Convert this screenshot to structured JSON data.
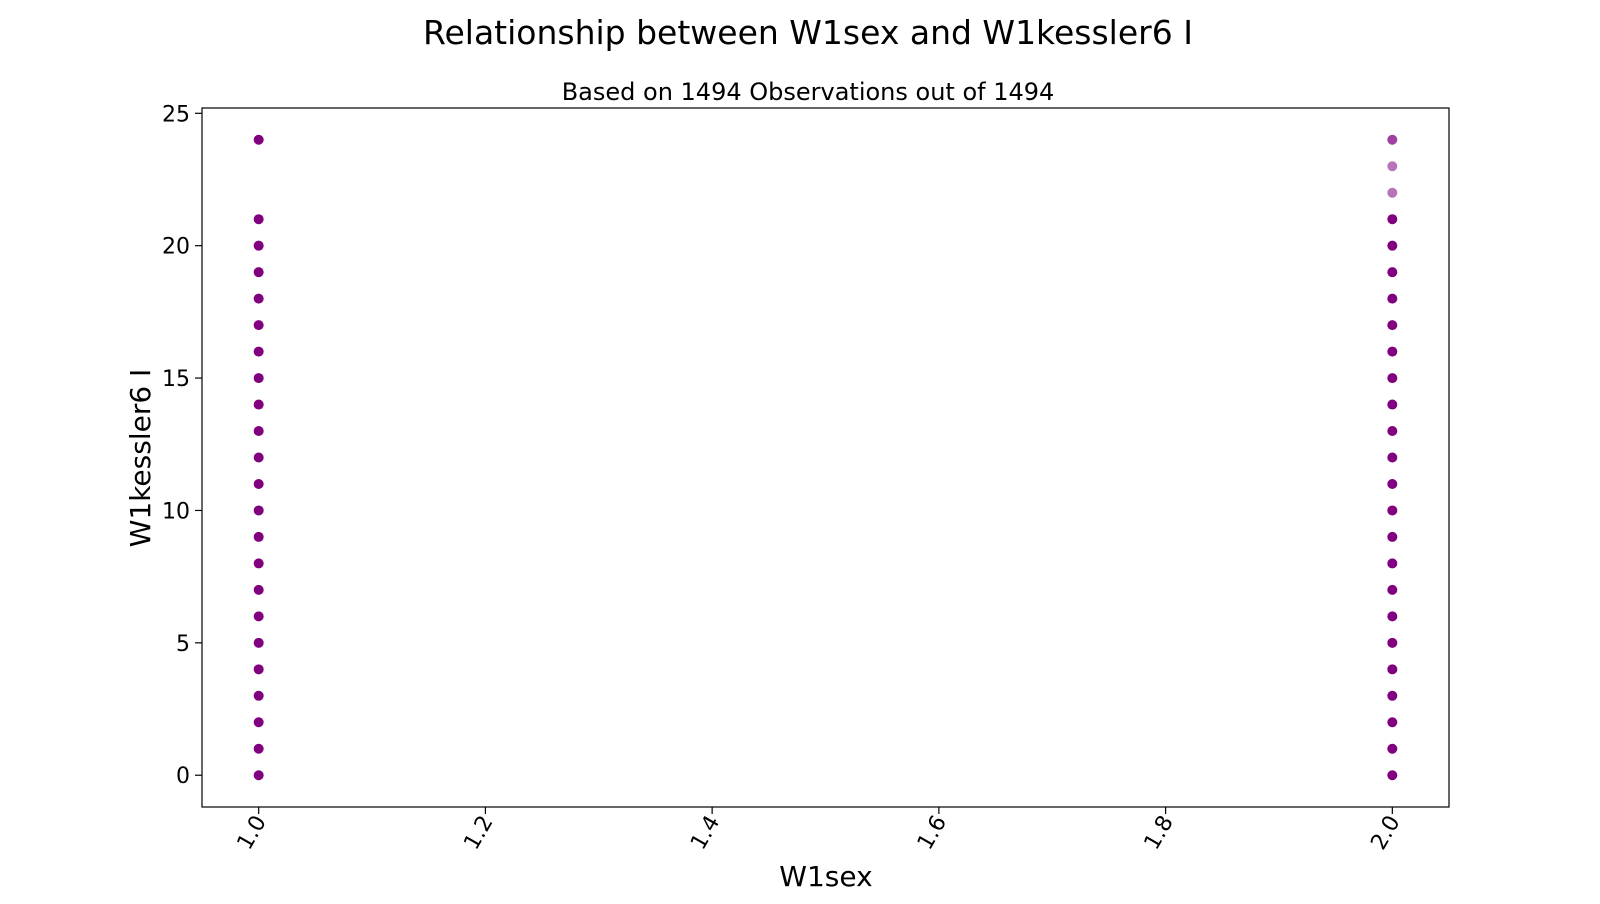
{
  "chart_data": {
    "type": "scatter",
    "title": "Relationship between W1sex and W1kessler6 I",
    "subtitle": "Based on 1494 Observations out of 1494",
    "xlabel": "W1sex",
    "ylabel": "W1kessler6 I",
    "xlim": [
      0.95,
      2.05
    ],
    "ylim": [
      -1.2,
      25.2
    ],
    "xticks": [
      1.0,
      1.2,
      1.4,
      1.6,
      1.8,
      2.0
    ],
    "xtick_labels": [
      "1.0",
      "1.2",
      "1.4",
      "1.6",
      "1.8",
      "2.0"
    ],
    "yticks": [
      0,
      5,
      10,
      15,
      20,
      25
    ],
    "ytick_labels": [
      "0",
      "5",
      "10",
      "15",
      "20",
      "25"
    ],
    "xtick_rotation": "60 degrees counter-clockwise",
    "grid": false,
    "legend": "none",
    "marker_color": "#800080",
    "series": [
      {
        "x": 1.0,
        "y": [
          0,
          1,
          2,
          3,
          4,
          5,
          6,
          7,
          8,
          9,
          10,
          11,
          12,
          13,
          14,
          15,
          16,
          17,
          18,
          19,
          20,
          21,
          24
        ],
        "opacity": [
          1,
          1,
          1,
          1,
          1,
          1,
          1,
          1,
          1,
          1,
          1,
          1,
          1,
          1,
          1,
          1,
          1,
          1,
          1,
          1,
          1,
          1,
          1
        ]
      },
      {
        "x": 2.0,
        "y": [
          0,
          1,
          2,
          3,
          4,
          5,
          6,
          7,
          8,
          9,
          10,
          11,
          12,
          13,
          14,
          15,
          16,
          17,
          18,
          19,
          20,
          21,
          22,
          23,
          24
        ],
        "opacity": [
          1,
          1,
          1,
          1,
          1,
          1,
          1,
          1,
          1,
          1,
          1,
          1,
          1,
          1,
          1,
          1,
          1,
          1,
          1,
          1,
          1,
          1,
          0.55,
          0.55,
          0.75
        ]
      }
    ]
  }
}
